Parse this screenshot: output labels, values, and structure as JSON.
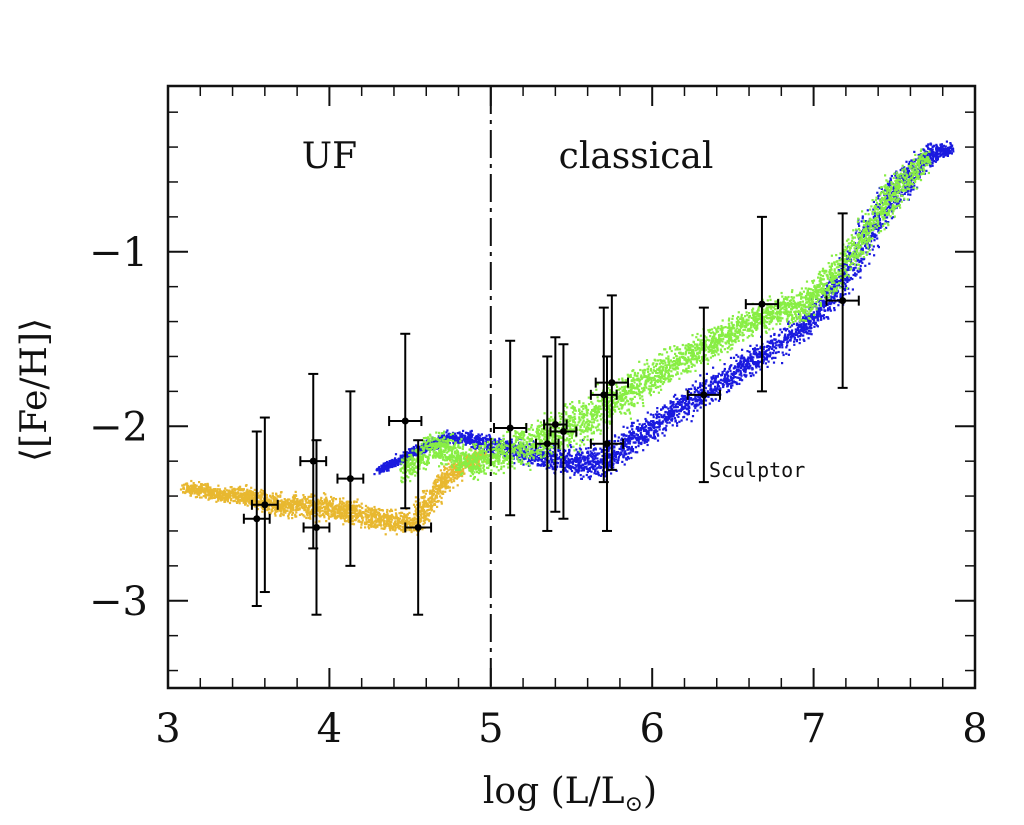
{
  "chart_data": {
    "type": "scatter",
    "title": "",
    "xlabel": "log (L/L",
    "xlabel_sub": "⊙",
    "xlabel_close": ")",
    "ylabel": "⟨[Fe/H]⟩",
    "xlim": [
      3,
      8
    ],
    "ylim": [
      -3.5,
      -0.05
    ],
    "x_ticks": [
      3,
      4,
      5,
      6,
      7,
      8
    ],
    "x_tick_labels": [
      "3",
      "4",
      "5",
      "6",
      "7",
      "8"
    ],
    "y_ticks": [
      -1,
      -2,
      -3
    ],
    "y_tick_labels": [
      "−1",
      "−2",
      "−3"
    ],
    "grid": false,
    "divider": {
      "x": 5,
      "style": "long-dash-dot"
    },
    "regions": [
      {
        "label": "UF",
        "x": 4.0,
        "y": -0.45
      },
      {
        "label": "classical",
        "x": 5.9,
        "y": -0.45
      }
    ],
    "annotations": [
      {
        "text": "Sculptor",
        "x": 6.65,
        "y": -2.25
      }
    ],
    "colors": {
      "yellow": "#e8b830",
      "green": "#88ee44",
      "blue": "#1a1adf",
      "points": "#000000"
    },
    "model_clouds": [
      {
        "color": "yellow",
        "name": "",
        "description": "dense yellow cloud",
        "segments": [
          [
            3.1,
            -2.35,
            0.05
          ],
          [
            3.3,
            -2.38,
            0.06
          ],
          [
            3.5,
            -2.4,
            0.08
          ],
          [
            3.7,
            -2.45,
            0.09
          ],
          [
            3.9,
            -2.45,
            0.1
          ],
          [
            4.1,
            -2.48,
            0.1
          ],
          [
            4.3,
            -2.52,
            0.1
          ],
          [
            4.5,
            -2.55,
            0.1
          ],
          [
            4.6,
            -2.45,
            0.15
          ],
          [
            4.7,
            -2.3,
            0.12
          ],
          [
            4.85,
            -2.2,
            0.08
          ],
          [
            4.95,
            -2.15,
            0.06
          ]
        ]
      },
      {
        "color": "blue",
        "name": "",
        "description": "blue cloud",
        "segments": [
          [
            4.3,
            -2.25,
            0.03
          ],
          [
            4.5,
            -2.15,
            0.04
          ],
          [
            4.75,
            -2.05,
            0.05
          ],
          [
            5.5,
            -2.2,
            0.12
          ],
          [
            5.7,
            -2.2,
            0.15
          ],
          [
            5.9,
            -2.05,
            0.12
          ],
          [
            6.9,
            -1.45,
            0.12
          ],
          [
            7.1,
            -1.25,
            0.18
          ],
          [
            7.3,
            -0.95,
            0.2
          ],
          [
            7.5,
            -0.65,
            0.18
          ],
          [
            7.7,
            -0.45,
            0.1
          ],
          [
            7.85,
            -0.4,
            0.04
          ]
        ]
      },
      {
        "color": "green",
        "name": "",
        "description": "green cloud",
        "segments": [
          [
            4.45,
            -2.25,
            0.1
          ],
          [
            4.65,
            -2.1,
            0.14
          ],
          [
            4.85,
            -2.2,
            0.12
          ],
          [
            5.1,
            -2.15,
            0.15
          ],
          [
            5.35,
            -2.05,
            0.18
          ],
          [
            5.6,
            -1.95,
            0.18
          ],
          [
            5.85,
            -1.8,
            0.16
          ],
          [
            6.1,
            -1.65,
            0.14
          ],
          [
            6.4,
            -1.5,
            0.13
          ],
          [
            6.7,
            -1.35,
            0.12
          ],
          [
            6.95,
            -1.3,
            0.14
          ],
          [
            7.2,
            -1.05,
            0.18
          ],
          [
            7.45,
            -0.7,
            0.18
          ],
          [
            7.7,
            -0.45,
            0.1
          ]
        ]
      }
    ],
    "observed": [
      {
        "x": 3.55,
        "y": -2.53,
        "xerr": 0.08,
        "yerr": 0.5
      },
      {
        "x": 3.6,
        "y": -2.45,
        "xerr": 0.08,
        "yerr": 0.5
      },
      {
        "x": 3.9,
        "y": -2.2,
        "xerr": 0.08,
        "yerr": 0.5
      },
      {
        "x": 3.92,
        "y": -2.58,
        "xerr": 0.08,
        "yerr": 0.5
      },
      {
        "x": 4.13,
        "y": -2.3,
        "xerr": 0.08,
        "yerr": 0.5
      },
      {
        "x": 4.47,
        "y": -1.97,
        "xerr": 0.1,
        "yerr": 0.5
      },
      {
        "x": 4.55,
        "y": -2.58,
        "xerr": 0.08,
        "yerr": 0.5
      },
      {
        "x": 5.12,
        "y": -2.01,
        "xerr": 0.1,
        "yerr": 0.5
      },
      {
        "x": 5.35,
        "y": -2.1,
        "xerr": 0.07,
        "yerr": 0.5
      },
      {
        "x": 5.4,
        "y": -1.99,
        "xerr": 0.07,
        "yerr": 0.5
      },
      {
        "x": 5.45,
        "y": -2.03,
        "xerr": 0.08,
        "yerr": 0.5
      },
      {
        "x": 5.7,
        "y": -1.82,
        "xerr": 0.08,
        "yerr": 0.5
      },
      {
        "x": 5.72,
        "y": -2.1,
        "xerr": 0.1,
        "yerr": 0.5
      },
      {
        "x": 5.75,
        "y": -1.75,
        "xerr": 0.1,
        "yerr": 0.5
      },
      {
        "x": 6.32,
        "y": -1.82,
        "xerr": 0.1,
        "yerr": 0.5
      },
      {
        "x": 6.68,
        "y": -1.3,
        "xerr": 0.1,
        "yerr": 0.5
      },
      {
        "x": 7.18,
        "y": -1.28,
        "xerr": 0.1,
        "yerr": 0.5
      }
    ]
  }
}
